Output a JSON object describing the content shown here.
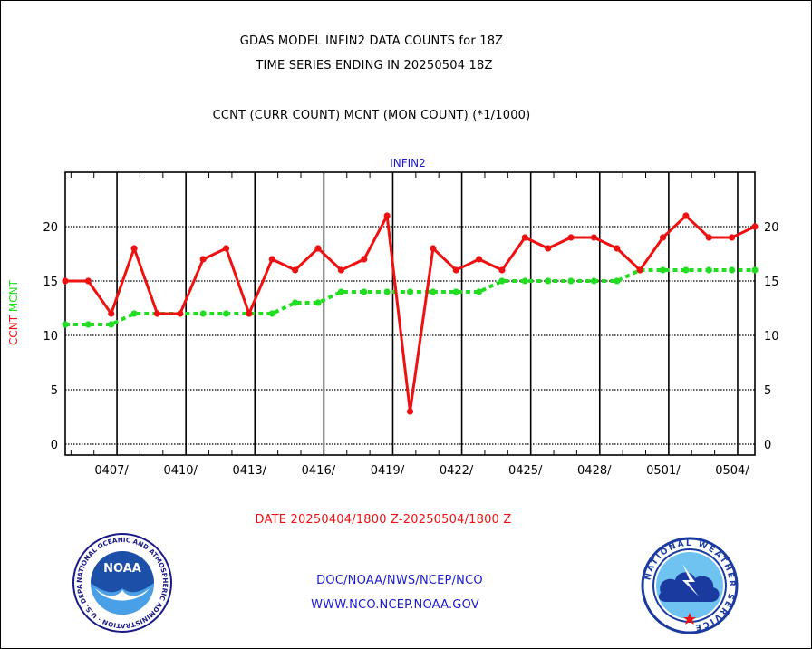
{
  "header": {
    "title_line1": "GDAS MODEL INFIN2 DATA COUNTS for 18Z",
    "title_line2": "TIME SERIES ENDING IN 20250504 18Z",
    "subtitle": "CCNT (CURR COUNT) MCNT (MON COUNT) (*1/1000)"
  },
  "footer": {
    "date_range": "DATE 20250404/1800 Z-20250504/1800 Z",
    "org_path": "DOC/NOAA/NWS/NCEP/NCO",
    "website": "WWW.NCO.NCEP.NOAA.GOV"
  },
  "logos": {
    "noaa_text": "NOAA",
    "nws_ring_text": "NATIONAL WEATHER SERVICE",
    "noaa_ring_text": "NATIONAL OCEANIC AND ATMOSPHERIC ADMINISTRATION · U.S. DEPARTMENT OF COMMERCE"
  },
  "colors": {
    "ccnt": "#ee1111",
    "mcnt": "#22dd22",
    "title_blue": "#1a1acc"
  },
  "chart_data": {
    "type": "line",
    "title": "INFIN2",
    "ylabel_left_parts": [
      {
        "text": "CCNT",
        "color": "#ee1111"
      },
      {
        "text": "MCNT",
        "color": "#22dd22"
      }
    ],
    "ylim": [
      -1,
      25
    ],
    "yticks": [
      0,
      5,
      10,
      15,
      20
    ],
    "x_range": [
      "2025-04-04T18",
      "2025-05-04T18"
    ],
    "x_tick_labels": [
      "0407/",
      "0410/",
      "0413/",
      "0416/",
      "0419/",
      "0422/",
      "0425/",
      "0428/",
      "0501/",
      "0504/"
    ],
    "grid": true,
    "x": [
      "2025-04-04",
      "2025-04-05",
      "2025-04-06",
      "2025-04-07",
      "2025-04-08",
      "2025-04-09",
      "2025-04-10",
      "2025-04-11",
      "2025-04-12",
      "2025-04-13",
      "2025-04-14",
      "2025-04-15",
      "2025-04-16",
      "2025-04-17",
      "2025-04-18",
      "2025-04-19",
      "2025-04-20",
      "2025-04-21",
      "2025-04-22",
      "2025-04-23",
      "2025-04-24",
      "2025-04-25",
      "2025-04-26",
      "2025-04-27",
      "2025-04-28",
      "2025-04-29",
      "2025-04-30",
      "2025-05-01",
      "2025-05-02",
      "2025-05-03",
      "2025-05-04"
    ],
    "series": [
      {
        "name": "CCNT",
        "color": "#ee1111",
        "values": [
          15,
          15,
          12,
          18,
          12,
          12,
          17,
          18,
          12,
          17,
          16,
          18,
          16,
          17,
          21,
          3,
          18,
          16,
          17,
          16,
          19,
          18,
          19,
          19,
          18,
          16,
          19,
          21,
          19,
          19,
          20
        ]
      },
      {
        "name": "MCNT",
        "color": "#22dd22",
        "values": [
          11,
          11,
          11,
          12,
          12,
          12,
          12,
          12,
          12,
          12,
          13,
          13,
          14,
          14,
          14,
          14,
          14,
          14,
          14,
          15,
          15,
          15,
          15,
          15,
          15,
          16,
          16,
          16,
          16,
          16,
          16
        ]
      }
    ]
  }
}
